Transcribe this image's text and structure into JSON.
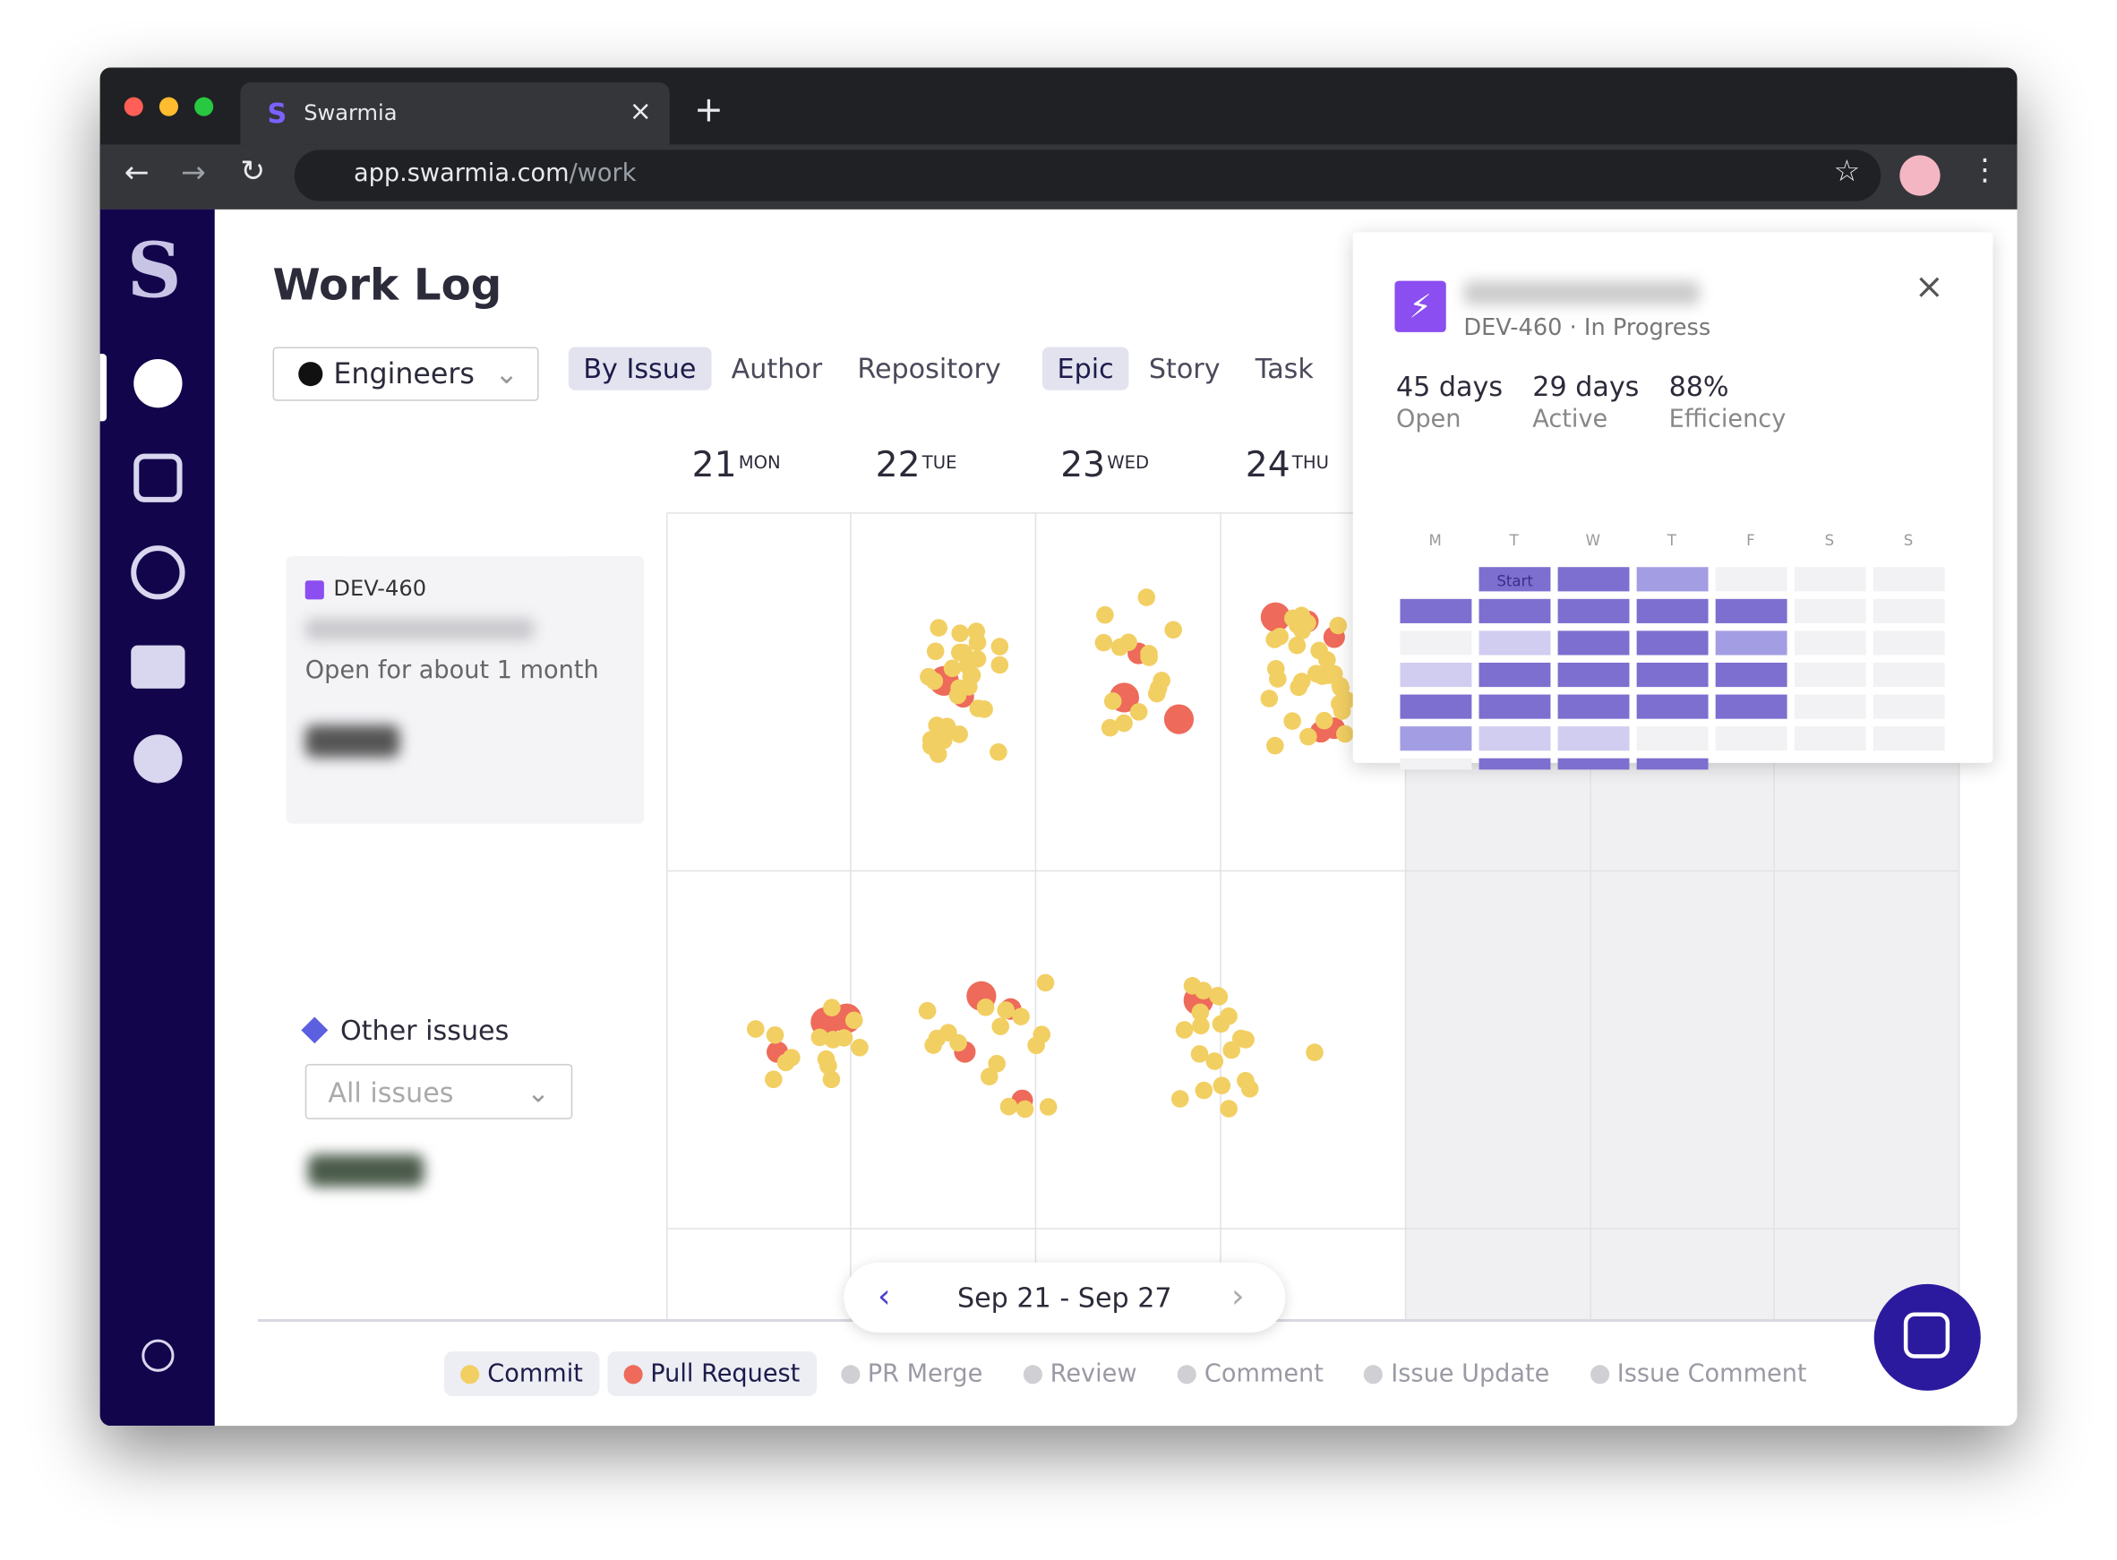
{
  "browser": {
    "tab_title": "Swarmia",
    "url_host": "app.swarmia.com",
    "url_path": "/work"
  },
  "header": {
    "title": "Work Log",
    "team_filter": "Engineers",
    "group_tabs": [
      "By Issue",
      "Author",
      "Repository"
    ],
    "type_tabs": [
      "Epic",
      "Story",
      "Task"
    ]
  },
  "days": [
    {
      "date": "21",
      "weekday": "MON"
    },
    {
      "date": "22",
      "weekday": "TUE"
    },
    {
      "date": "23",
      "weekday": "WED"
    },
    {
      "date": "24",
      "weekday": "THU"
    }
  ],
  "issue_card": {
    "key": "DEV-460",
    "status": "Open for about 1 month"
  },
  "other_issues": {
    "title": "Other issues",
    "filter": "All issues"
  },
  "date_range": "Sep 21 - Sep 27",
  "legend": [
    "Commit",
    "Pull Request",
    "PR Merge",
    "Review",
    "Comment",
    "Issue Update",
    "Issue Comment"
  ],
  "popup": {
    "subtitle": "DEV-460 · In Progress",
    "stats": [
      {
        "value": "45 days",
        "label": "Open"
      },
      {
        "value": "29 days",
        "label": "Active"
      },
      {
        "value": "88%",
        "label": "Efficiency"
      }
    ],
    "weekdays": [
      "M",
      "T",
      "W",
      "T",
      "F",
      "S",
      "S"
    ],
    "start_label": "Start"
  }
}
